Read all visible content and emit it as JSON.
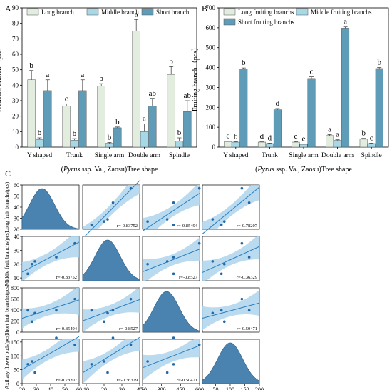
{
  "colors": {
    "long": "#e2ede0",
    "middle": "#a7d8e6",
    "short": "#5f9cb7",
    "corr_fill": "#aed3ec",
    "corr_line": "#2a7fc0",
    "density": "#4a83b0",
    "point": "#2369a8"
  },
  "chart_data": [
    {
      "panel": "A",
      "type": "bar",
      "ylabel": "Nutrient branch（pcs）",
      "xlabel_italic": "Pyrus",
      "xlabel_rest": " ssp. Va., Zaosu)Tree shape",
      "xlabel_open": "(",
      "categories": [
        "Y shaped",
        "Trunk",
        "Single arm",
        "Double arm",
        "Spindle"
      ],
      "ylim": [
        0,
        90
      ],
      "yticks": [
        0,
        10,
        20,
        30,
        40,
        50,
        60,
        70,
        80,
        90
      ],
      "series": [
        {
          "name": "Long branch",
          "values": [
            43.5,
            26.5,
            39.5,
            75,
            47
          ],
          "errors": [
            6,
            1.5,
            1.5,
            7.5,
            5
          ],
          "letters": [
            "b",
            "c",
            "b",
            "a",
            "b"
          ]
        },
        {
          "name": "Middle branch",
          "values": [
            5,
            4.5,
            2.5,
            10,
            4
          ],
          "errors": [
            1,
            1,
            0.5,
            5,
            2
          ],
          "letters": [
            "b",
            "b",
            "b",
            "a",
            "b"
          ]
        },
        {
          "name": "Short branch",
          "values": [
            36.5,
            36.5,
            12.5,
            26.5,
            23
          ],
          "errors": [
            7,
            7,
            0.5,
            5,
            7
          ],
          "letters": [
            "a",
            "a",
            "b",
            "ab",
            "ab"
          ]
        }
      ]
    },
    {
      "panel": "B",
      "type": "bar",
      "ylabel": "Fruiting branch（pcs）",
      "xlabel_italic": "Pyrus",
      "xlabel_rest": " ssp. Va., Zaosu)Tree shape",
      "xlabel_open": "(",
      "categories": [
        "Y shaped",
        "Trunk",
        "Single arm",
        "Double arm",
        "Spindle"
      ],
      "ylim": [
        0,
        700
      ],
      "yticks": [
        0,
        100,
        200,
        300,
        400,
        500,
        600,
        700
      ],
      "series": [
        {
          "name": "Long fruiting branchs",
          "values": [
            28,
            25,
            25,
            58,
            40
          ],
          "errors": [
            3,
            3,
            3,
            5,
            4
          ],
          "letters": [
            "c",
            "d",
            "c",
            "a",
            "b"
          ]
        },
        {
          "name": "Middle fruiting branchs",
          "values": [
            25,
            18,
            14,
            34,
            18
          ],
          "errors": [
            2,
            2,
            2,
            3,
            2
          ],
          "letters": [
            "b",
            "d",
            "e",
            "a",
            "c"
          ]
        },
        {
          "name": "Short fruiting branchs",
          "values": [
            393,
            188,
            345,
            598,
            395
          ],
          "errors": [
            5,
            6,
            8,
            6,
            5
          ],
          "letters": [
            "b",
            "d",
            "c",
            "a",
            "b"
          ]
        }
      ]
    },
    {
      "panel": "C",
      "type": "scatter",
      "variables": [
        "Long fruit branchs(pcs)",
        "Middle fruit branchs(pcs)",
        "Short fruit branchs(pcs)",
        "Axillary flower buds(pcs)"
      ],
      "ranges": [
        [
          20,
          60
        ],
        [
          8,
          40
        ],
        [
          150,
          600
        ],
        [
          5,
          200
        ]
      ],
      "yticks": [
        [
          20,
          30,
          40,
          50,
          60
        ],
        [
          10,
          20,
          30,
          40
        ],
        [
          0,
          200,
          400,
          600,
          800
        ],
        [
          0,
          50,
          100,
          150
        ]
      ],
      "xticks": [
        [
          20,
          30,
          40,
          50,
          60
        ],
        [
          10,
          20,
          30,
          40
        ],
        [
          150,
          300,
          450,
          600
        ],
        [
          0,
          50,
          100,
          150,
          200
        ]
      ],
      "ylim_cols": [
        [
          20,
          60
        ],
        [
          8,
          40
        ],
        [
          0,
          800
        ],
        [
          0,
          160
        ]
      ],
      "density_peaks": [
        34,
        22,
        340,
        100
      ],
      "values": {
        "long": [
          27,
          29,
          44,
          57,
          24
        ],
        "middle": [
          20,
          22,
          25,
          35,
          13
        ],
        "short": [
          190,
          345,
          395,
          598,
          395
        ],
        "axillary": [
          80,
          40,
          165,
          140,
          70
        ]
      },
      "r": [
        [
          null,
          "r=-0.83752",
          "r=-0.85494",
          "r=-0.78207"
        ],
        [
          "r=-0.83752",
          null,
          "r=-0.8527",
          "r=-0.36329"
        ],
        [
          "r=-0.85494",
          "r=-0.8527",
          null,
          "r=-0.50471"
        ],
        [
          "r=-0.78207",
          "r=-0.36329",
          "r=-0.50471",
          null
        ]
      ]
    }
  ],
  "labels": {
    "A": "A",
    "B": "B",
    "C": "C"
  }
}
